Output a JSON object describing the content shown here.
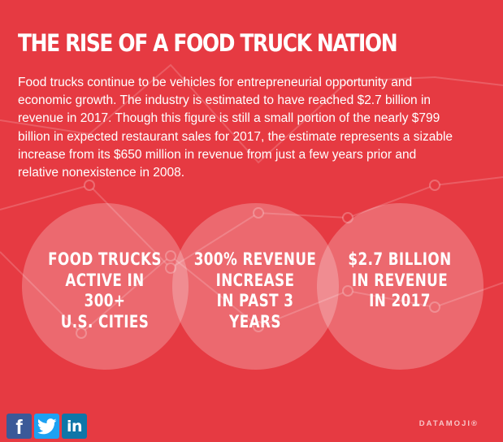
{
  "title": "THE RISE OF A FOOD TRUCK NATION",
  "body": "Food trucks continue to be vehicles for entrepreneurial opportunity and economic growth. The industry is estimated to have reached $2.7 billion in revenue in 2017. Though this figure is still a small portion of the nearly $799 billion in expected restaurant sales for 2017, the estimate represents a sizable increase from its $650 million in revenue from just a few years prior and relative nonexistence in 2008.",
  "stats": [
    {
      "lines": [
        "FOOD TRUCKS",
        "ACTIVE IN 300+",
        "U.S. CITIES"
      ]
    },
    {
      "lines": [
        "300% REVENUE",
        "INCREASE",
        "IN PAST 3 YEARS"
      ]
    },
    {
      "lines": [
        "$2.7 BILLION",
        "IN REVENUE",
        "IN 2017"
      ]
    }
  ],
  "social": {
    "facebook": "f",
    "linkedin": "in"
  },
  "brand": "DATAMOJI®",
  "colors": {
    "background": "#e63a42",
    "facebook": "#3b5998",
    "twitter": "#1da1f2",
    "linkedin": "#0e76a8"
  },
  "icons": [
    "facebook-icon",
    "twitter-icon",
    "linkedin-icon"
  ]
}
